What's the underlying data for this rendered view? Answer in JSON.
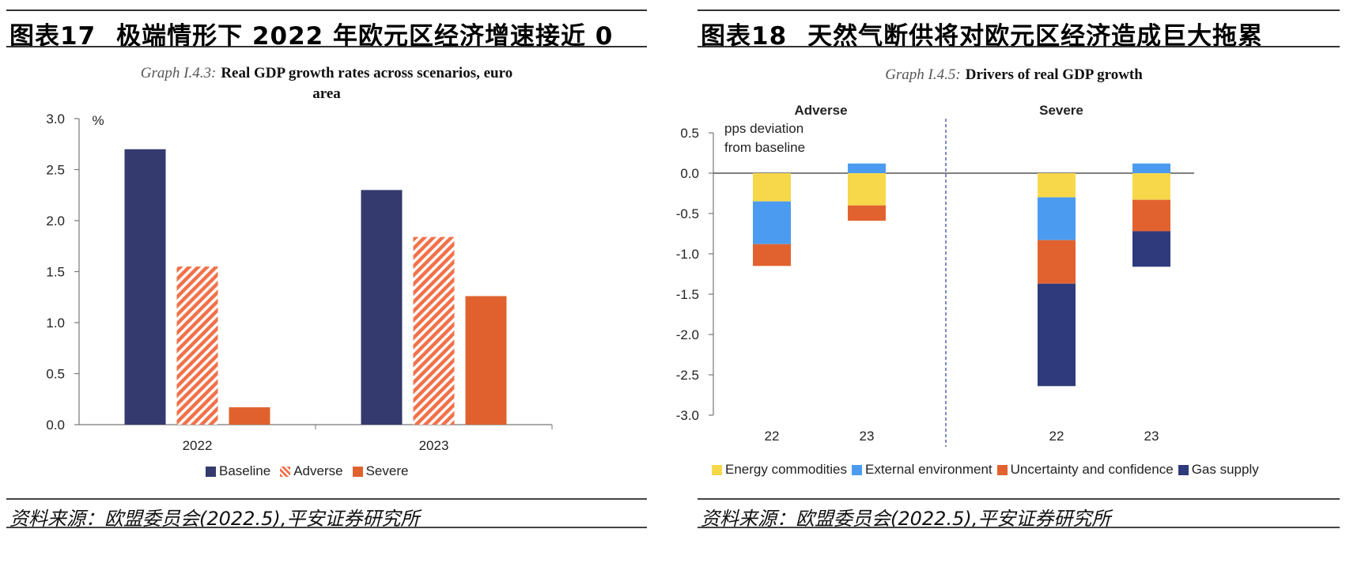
{
  "left": {
    "fig_label": "图表17",
    "fig_title": "极端情形下 2022 年欧元区经济增速接近 0",
    "chart_title_prefix": "Graph I.4.3:",
    "chart_title_line1": "Real GDP growth rates across scenarios, euro",
    "chart_title_line2": "area",
    "source": "资料来源：欧盟委员会(2022.5),平安证券研究所"
  },
  "right": {
    "fig_label": "图表18",
    "fig_title": "天然气断供将对欧元区经济造成巨大拖累",
    "chart_title_prefix": "Graph I.4.5:",
    "chart_title_main": "Drivers of real GDP growth",
    "source": "资料来源：欧盟委员会(2022.5),平安证券研究所"
  },
  "colors": {
    "baseline": "#343a6e",
    "adverse": "#f2714a",
    "severe": "#e0612e",
    "energy": "#f7d84b",
    "external": "#4b9cf0",
    "uncertainty": "#e2622f",
    "gas": "#2f3a7c"
  },
  "chart_data": [
    {
      "type": "bar",
      "title": "Real GDP growth rates across scenarios, euro area",
      "unit_label": "%",
      "categories": [
        "2022",
        "2023"
      ],
      "series": [
        {
          "name": "Baseline",
          "values": [
            2.7,
            2.3
          ],
          "color": "#343a6e",
          "pattern": "solid"
        },
        {
          "name": "Adverse",
          "values": [
            1.55,
            1.84
          ],
          "color": "#f2714a",
          "pattern": "hatched"
        },
        {
          "name": "Severe",
          "values": [
            0.17,
            1.26
          ],
          "color": "#e0612e",
          "pattern": "solid"
        }
      ],
      "ylim": [
        0,
        3.0
      ],
      "yticks": [
        0.0,
        0.5,
        1.0,
        1.5,
        2.0,
        2.5,
        3.0
      ],
      "ytick_labels": [
        "0.0",
        "0.5",
        "1.0",
        "1.5",
        "2.0",
        "2.5",
        "3.0"
      ],
      "legend": [
        "Baseline",
        "Adverse",
        "Severe"
      ]
    },
    {
      "type": "bar",
      "stacked": true,
      "title": "Drivers of real GDP growth",
      "unit_label_line1": "pps deviation",
      "unit_label_line2": "from baseline",
      "panels": [
        {
          "name": "Adverse",
          "categories": [
            "22",
            "23"
          ]
        },
        {
          "name": "Severe",
          "categories": [
            "22",
            "23"
          ]
        }
      ],
      "groups": [
        "Adverse 22",
        "Adverse 23",
        "Severe 22",
        "Severe 23"
      ],
      "series": [
        {
          "name": "Energy commodities",
          "color": "#f7d84b",
          "values": [
            -0.35,
            -0.4,
            -0.3,
            -0.33
          ]
        },
        {
          "name": "External environment",
          "color": "#4b9cf0",
          "values": [
            -0.53,
            0.12,
            -0.53,
            0.12
          ]
        },
        {
          "name": "Uncertainty and confidence",
          "color": "#e2622f",
          "values": [
            -0.27,
            -0.19,
            -0.54,
            -0.39
          ]
        },
        {
          "name": "Gas supply",
          "color": "#2f3a7c",
          "values": [
            0,
            0,
            -1.27,
            -0.44
          ]
        }
      ],
      "ylim": [
        -3.0,
        0.5
      ],
      "yticks": [
        0.5,
        0.0,
        -0.5,
        -1.0,
        -1.5,
        -2.0,
        -2.5,
        -3.0
      ],
      "ytick_labels": [
        "0.5",
        "0.0",
        "-0.5",
        "-1.0",
        "-1.5",
        "-2.0",
        "-2.5",
        "-3.0"
      ],
      "legend": [
        "Energy commodities",
        "External environment",
        "Uncertainty and confidence",
        "Gas supply"
      ]
    }
  ]
}
